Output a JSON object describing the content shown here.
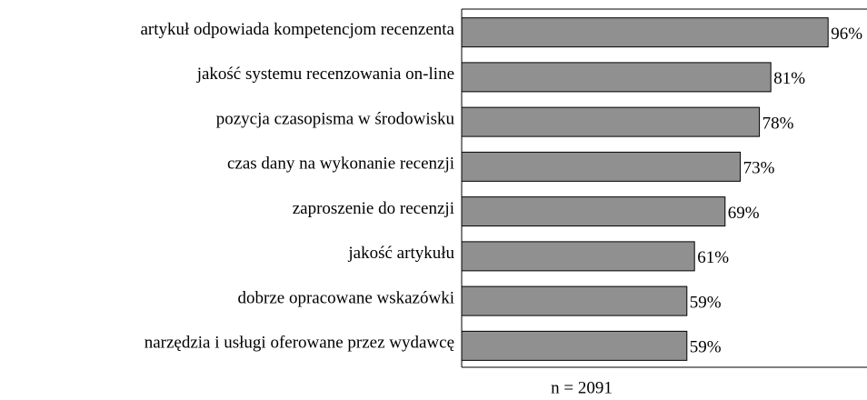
{
  "chart_data": {
    "type": "barh",
    "categories": [
      "artykuł odpowiada kompetencjom recenzenta",
      "jakość systemu recenzowania on-line",
      "pozycja czasopisma w środowisku",
      "czas dany na wykonanie recenzji",
      "zaproszenie do recenzji",
      "jakość artykułu",
      "dobrze opracowane wskazówki",
      "narzędzia i usługi oferowane przez wydawcę"
    ],
    "values": [
      96,
      81,
      78,
      73,
      69,
      61,
      59,
      59
    ],
    "value_labels": [
      "96%",
      "81%",
      "78%",
      "73%",
      "69%",
      "61%",
      "59%",
      "59%"
    ],
    "color": "#909090",
    "xlim": [
      0,
      100
    ],
    "xlabel": "n = 2091"
  }
}
